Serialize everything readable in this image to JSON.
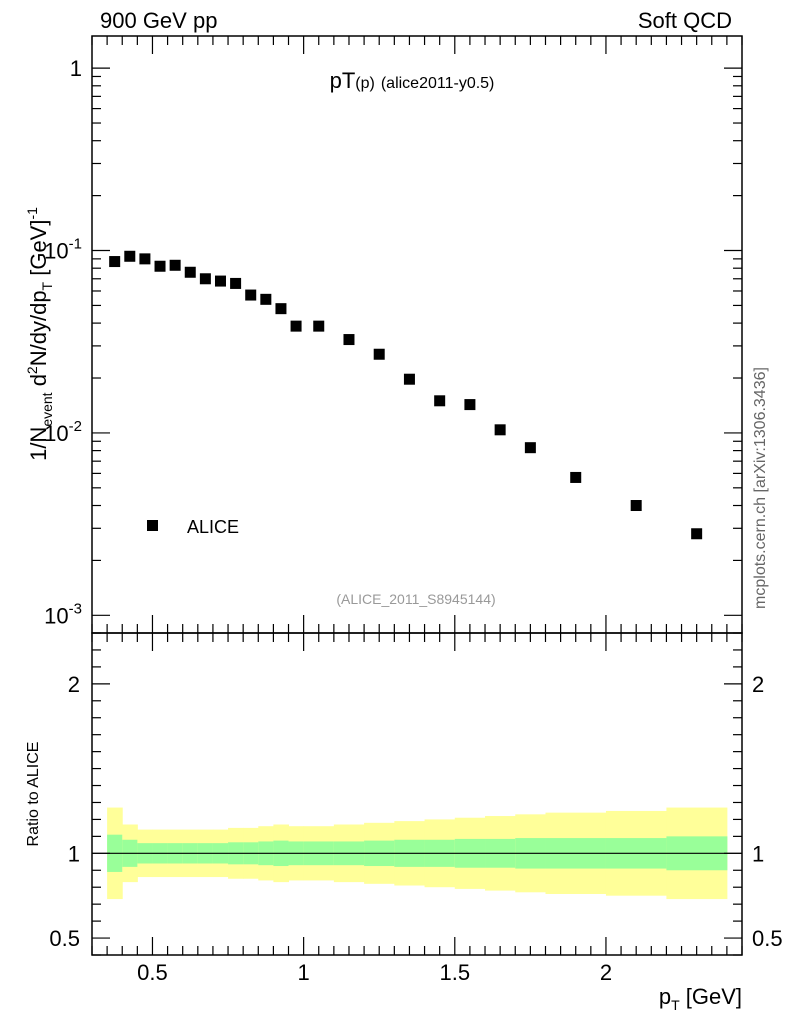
{
  "header": {
    "left": "900 GeV pp",
    "right": "Soft QCD"
  },
  "side_label": "mcplots.cern.ch [arXiv:1306.3436]",
  "chart_data": [
    {
      "type": "scatter",
      "title_main": "pT",
      "title_sub": "(p)",
      "title_tail": "(alice2011-y0.5)",
      "ylabel": {
        "prefix": "1/N",
        "sub1": "event",
        "mid1": " d",
        "sup1": "2",
        "mid2": "N/dy/dp",
        "sub2": "T",
        "mid3": " [GeV]",
        "sup2": "-1"
      },
      "yscale": "log",
      "xlim": [
        0.3,
        2.45
      ],
      "ylim": [
        0.0008,
        1.5
      ],
      "y_ticks": [
        {
          "value": 1,
          "label": "1",
          "exp": ""
        },
        {
          "value": 0.1,
          "label": "10",
          "exp": "-1"
        },
        {
          "value": 0.01,
          "label": "10",
          "exp": "-2"
        },
        {
          "value": 0.001,
          "label": "10",
          "exp": "-3"
        }
      ],
      "legend": {
        "label": "ALICE",
        "position": "lower-left"
      },
      "annotation": "(ALICE_2011_S8945144)",
      "series": [
        {
          "name": "ALICE",
          "x": [
            0.375,
            0.425,
            0.475,
            0.525,
            0.575,
            0.625,
            0.675,
            0.725,
            0.775,
            0.825,
            0.875,
            0.925,
            0.975,
            1.05,
            1.15,
            1.25,
            1.35,
            1.45,
            1.55,
            1.65,
            1.75,
            1.9,
            2.1,
            2.3
          ],
          "y": [
            0.087,
            0.093,
            0.09,
            0.082,
            0.083,
            0.076,
            0.07,
            0.068,
            0.066,
            0.057,
            0.054,
            0.048,
            0.0385,
            0.0385,
            0.0325,
            0.027,
            0.0197,
            0.015,
            0.0143,
            0.0104,
            0.0083,
            0.0057,
            0.004,
            0.0028
          ]
        }
      ]
    },
    {
      "type": "band",
      "ylabel": "Ratio to ALICE",
      "xlabel": "p",
      "xlabel_sub": "T",
      "xlabel_unit": " [GeV]",
      "xlim": [
        0.3,
        2.45
      ],
      "ylim": [
        0.4,
        2.3
      ],
      "y_ticks": [
        {
          "value": 0.5,
          "label": "0.5"
        },
        {
          "value": 1,
          "label": "1"
        },
        {
          "value": 2,
          "label": "2"
        }
      ],
      "x_ticks": [
        {
          "value": 0.5,
          "label": "0.5"
        },
        {
          "value": 1,
          "label": "1"
        },
        {
          "value": 1.5,
          "label": "1.5"
        },
        {
          "value": 2,
          "label": "2"
        }
      ],
      "bin_edges": [
        0.35,
        0.4,
        0.45,
        0.5,
        0.55,
        0.6,
        0.65,
        0.7,
        0.75,
        0.8,
        0.85,
        0.9,
        0.95,
        1.0,
        1.1,
        1.2,
        1.3,
        1.4,
        1.5,
        1.6,
        1.7,
        1.8,
        2.0,
        2.2,
        2.4
      ],
      "inner_band": [
        0.11,
        0.08,
        0.06,
        0.06,
        0.06,
        0.06,
        0.06,
        0.06,
        0.065,
        0.065,
        0.07,
        0.075,
        0.07,
        0.07,
        0.07,
        0.075,
        0.08,
        0.08,
        0.085,
        0.085,
        0.09,
        0.09,
        0.09,
        0.1
      ],
      "outer_band": [
        0.27,
        0.17,
        0.14,
        0.14,
        0.14,
        0.14,
        0.14,
        0.14,
        0.15,
        0.15,
        0.16,
        0.17,
        0.16,
        0.16,
        0.17,
        0.18,
        0.19,
        0.2,
        0.21,
        0.22,
        0.23,
        0.24,
        0.25,
        0.27
      ],
      "reference_line": 1,
      "colors": {
        "inner": "#99ff99",
        "outer": "#ffff99",
        "line": "#000000"
      }
    }
  ]
}
